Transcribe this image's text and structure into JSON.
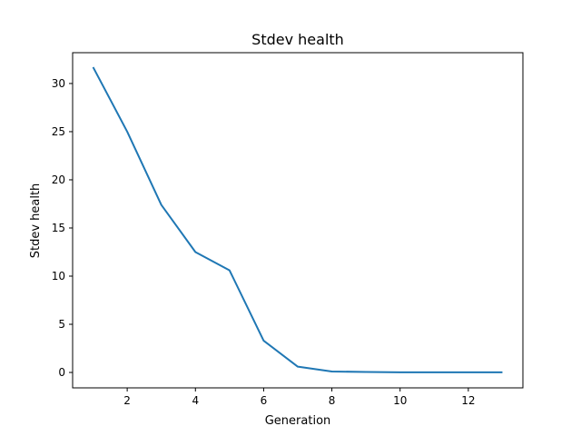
{
  "chart_data": {
    "type": "line",
    "title": "Stdev health",
    "xlabel": "Generation",
    "ylabel": "Stdev health",
    "xlim": [
      0.4,
      13.6
    ],
    "ylim": [
      -1.6,
      33.2
    ],
    "xticks": [
      2,
      4,
      6,
      8,
      10,
      12
    ],
    "yticks": [
      0,
      5,
      10,
      15,
      20,
      25,
      30
    ],
    "grid": false,
    "series": [
      {
        "color": "#1f77b4",
        "x": [
          1,
          2,
          3,
          4,
          5,
          6,
          7,
          8,
          9,
          10,
          11,
          12,
          13
        ],
        "y": [
          31.7,
          25.0,
          17.4,
          12.5,
          10.6,
          3.3,
          0.6,
          0.1,
          0.05,
          0.02,
          0.02,
          0.02,
          0.02
        ]
      }
    ]
  }
}
